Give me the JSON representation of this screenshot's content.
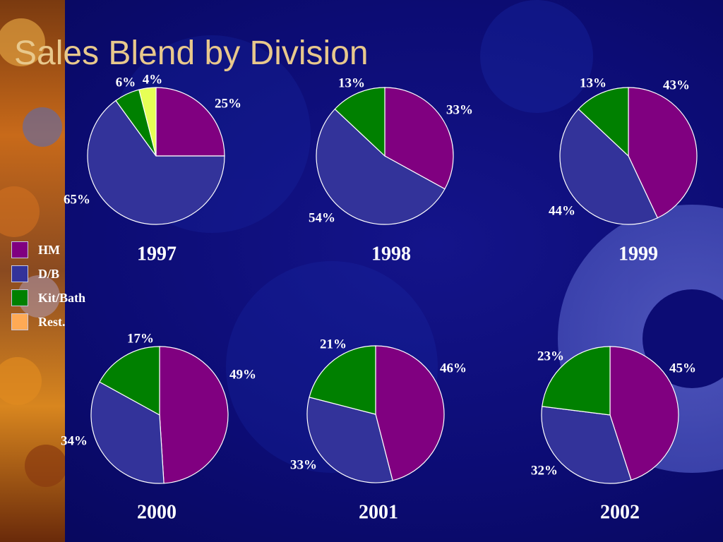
{
  "slide": {
    "title": "Sales Blend by Division"
  },
  "legend": [
    {
      "name": "HM",
      "color": "#800080"
    },
    {
      "name": "D/B",
      "color": "#33339a"
    },
    {
      "name": "Kit/Bath",
      "color": "#008000"
    },
    {
      "name": "Rest.",
      "color": "#ffaa55"
    }
  ],
  "chart_data": [
    {
      "type": "pie",
      "title": "1997",
      "slices": [
        {
          "series": "HM",
          "value": 25,
          "label": "25%",
          "color": "#800080"
        },
        {
          "series": "D/B",
          "value": 65,
          "label": "65%",
          "color": "#33339a"
        },
        {
          "series": "Kit/Bath",
          "value": 6,
          "label": "6%",
          "color": "#008000"
        },
        {
          "series": "Rest.",
          "value": 4,
          "label": "4%",
          "color": "#e6ff55"
        }
      ]
    },
    {
      "type": "pie",
      "title": "1998",
      "slices": [
        {
          "series": "HM",
          "value": 33,
          "label": "33%",
          "color": "#800080"
        },
        {
          "series": "D/B",
          "value": 54,
          "label": "54%",
          "color": "#33339a"
        },
        {
          "series": "Kit/Bath",
          "value": 13,
          "label": "13%",
          "color": "#008000"
        }
      ]
    },
    {
      "type": "pie",
      "title": "1999",
      "slices": [
        {
          "series": "HM",
          "value": 43,
          "label": "43%",
          "color": "#800080"
        },
        {
          "series": "D/B",
          "value": 44,
          "label": "44%",
          "color": "#33339a"
        },
        {
          "series": "Kit/Bath",
          "value": 13,
          "label": "13%",
          "color": "#008000"
        }
      ]
    },
    {
      "type": "pie",
      "title": "2000",
      "slices": [
        {
          "series": "HM",
          "value": 49,
          "label": "49%",
          "color": "#800080"
        },
        {
          "series": "D/B",
          "value": 34,
          "label": "34%",
          "color": "#33339a"
        },
        {
          "series": "Kit/Bath",
          "value": 17,
          "label": "17%",
          "color": "#008000"
        }
      ]
    },
    {
      "type": "pie",
      "title": "2001",
      "slices": [
        {
          "series": "HM",
          "value": 46,
          "label": "46%",
          "color": "#800080"
        },
        {
          "series": "D/B",
          "value": 33,
          "label": "33%",
          "color": "#33339a"
        },
        {
          "series": "Kit/Bath",
          "value": 21,
          "label": "21%",
          "color": "#008000"
        }
      ]
    },
    {
      "type": "pie",
      "title": "2002",
      "slices": [
        {
          "series": "HM",
          "value": 45,
          "label": "45%",
          "color": "#800080"
        },
        {
          "series": "D/B",
          "value": 32,
          "label": "32%",
          "color": "#33339a"
        },
        {
          "series": "Kit/Bath",
          "value": 23,
          "label": "23%",
          "color": "#008000"
        }
      ]
    }
  ]
}
